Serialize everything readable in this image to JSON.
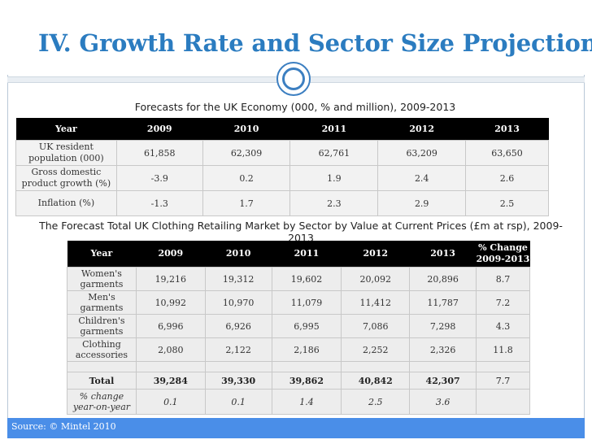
{
  "title": "IV. Growth Rate and Sector Size Projections",
  "table1": {
    "caption": "Forecasts for the UK Economy (000, % and million), 2009-2013",
    "headers": [
      "Year",
      "2009",
      "2010",
      "2011",
      "2012",
      "2013"
    ],
    "rows": [
      {
        "label": "UK resident population (000)",
        "values": [
          "61,858",
          "62,309",
          "62,761",
          "63,209",
          "63,650"
        ]
      },
      {
        "label": "Gross domestic product growth (%)",
        "values": [
          "-3.9",
          "0.2",
          "1.9",
          "2.4",
          "2.6"
        ]
      },
      {
        "label": "Inflation (%)",
        "values": [
          "-1.3",
          "1.7",
          "2.3",
          "2.9",
          "2.5"
        ]
      }
    ]
  },
  "table2": {
    "caption": "The Forecast Total UK Clothing Retailing Market by Sector by Value at Current Prices (£m at rsp), 2009-2013",
    "headers": [
      "Year",
      "2009",
      "2010",
      "2011",
      "2012",
      "2013",
      "% Change 2009-2013"
    ],
    "rows": [
      {
        "label": "Women's garments",
        "values": [
          "19,216",
          "19,312",
          "19,602",
          "20,092",
          "20,896",
          "8.7"
        ]
      },
      {
        "label": "Men's garments",
        "values": [
          "10,992",
          "10,970",
          "11,079",
          "11,412",
          "11,787",
          "7.2"
        ]
      },
      {
        "label": "Children's garments",
        "values": [
          "6,996",
          "6,926",
          "6,995",
          "7,086",
          "7,298",
          "4.3"
        ]
      },
      {
        "label": "Clothing accessories",
        "values": [
          "2,080",
          "2,122",
          "2,186",
          "2,252",
          "2,326",
          "11.8"
        ]
      }
    ],
    "total": {
      "label": "Total",
      "values": [
        "39,284",
        "39,330",
        "39,862",
        "40,842",
        "42,307",
        "7.7"
      ]
    },
    "pct_change": {
      "label": "% change year-on-year",
      "values": [
        "0.1",
        "0.1",
        "1.4",
        "2.5",
        "3.6",
        ""
      ]
    }
  },
  "source": "Source: © Mintel 2010",
  "colors": {
    "title": "#2b7cc0",
    "source_bar": "#4a8ee8",
    "header_bg": "#000000"
  }
}
